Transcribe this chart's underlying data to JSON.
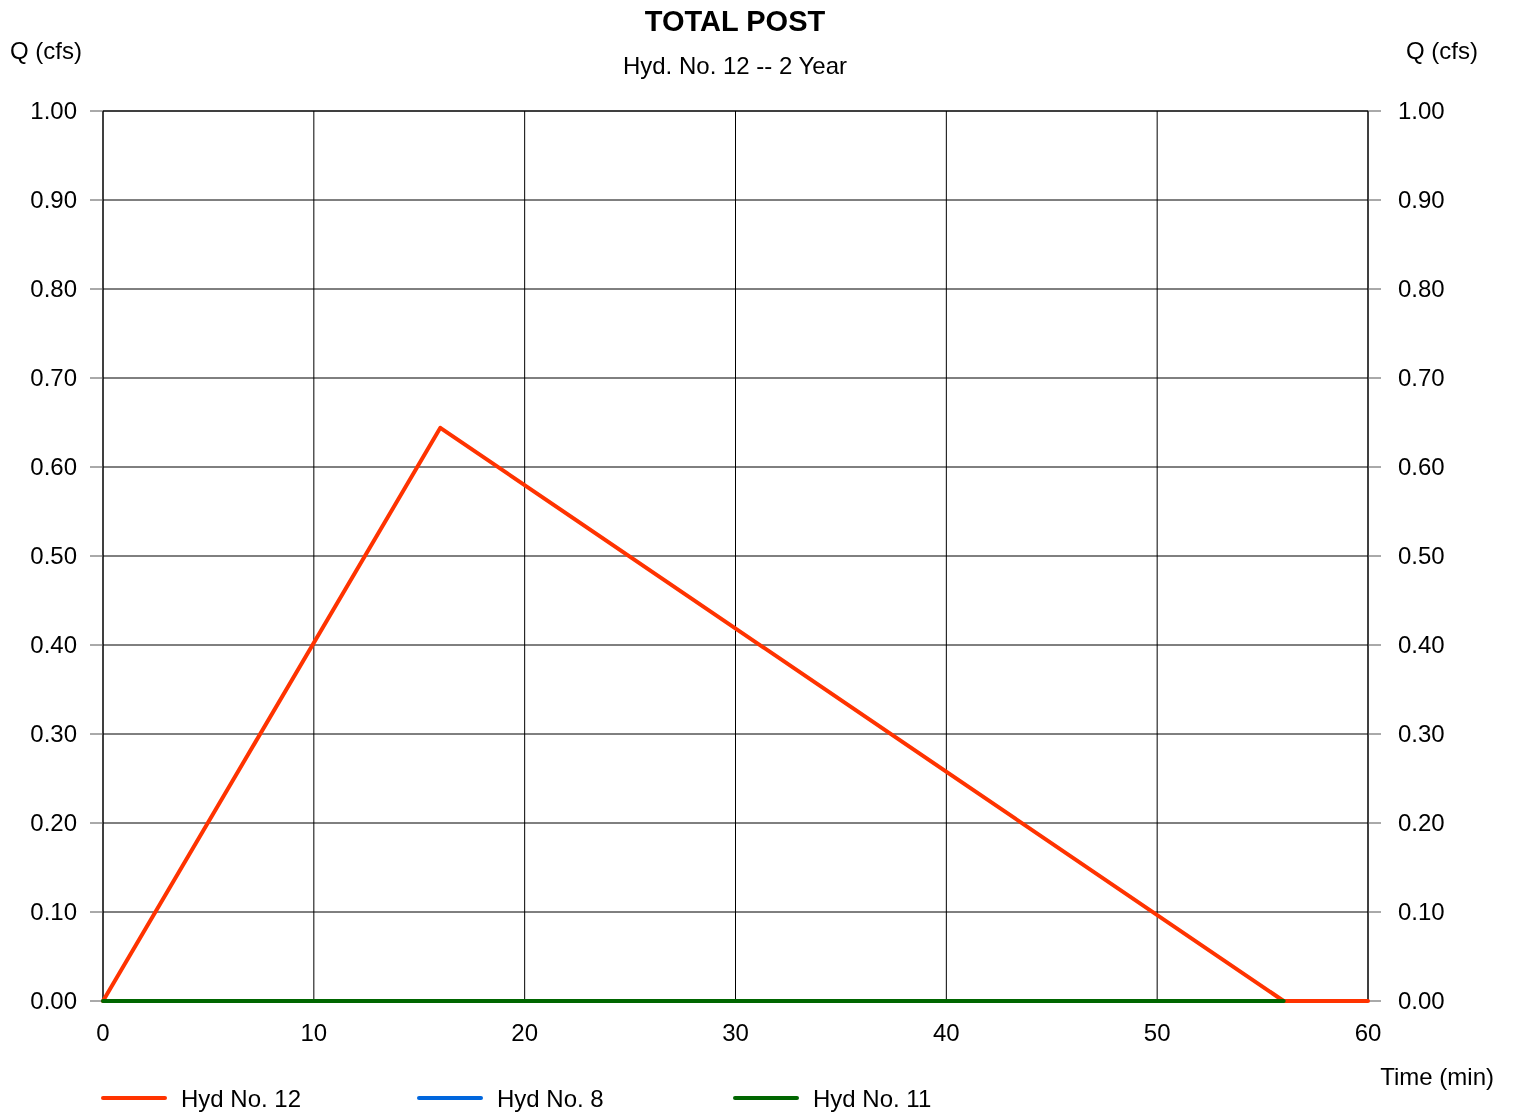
{
  "chart_data": {
    "type": "line",
    "title": "TOTAL POST",
    "subtitle": "Hyd. No. 12 -- 2 Year",
    "xlabel": "Time (min)",
    "ylabel": "Q (cfs)",
    "y2label": "Q (cfs)",
    "xlim": [
      0,
      60
    ],
    "xticks": [
      0,
      10,
      20,
      30,
      40,
      50,
      60
    ],
    "ylim": [
      0,
      1
    ],
    "yticks": [
      {
        "value": 0,
        "label": "0.00"
      },
      {
        "value": 0.1,
        "label": "0.10"
      },
      {
        "value": 0.2,
        "label": "0.20"
      },
      {
        "value": 0.3,
        "label": "0.30"
      },
      {
        "value": 0.4,
        "label": "0.40"
      },
      {
        "value": 0.5,
        "label": "0.50"
      },
      {
        "value": 0.6,
        "label": "0.60"
      },
      {
        "value": 0.7,
        "label": "0.70"
      },
      {
        "value": 0.8,
        "label": "0.80"
      },
      {
        "value": 0.9,
        "label": "0.90"
      },
      {
        "value": 1,
        "label": "1.00"
      }
    ],
    "y2lim": [
      0,
      1
    ],
    "y2ticks": [
      {
        "value": 0,
        "label": "0.00"
      },
      {
        "value": 0.1,
        "label": "0.10"
      },
      {
        "value": 0.2,
        "label": "0.20"
      },
      {
        "value": 0.3,
        "label": "0.30"
      },
      {
        "value": 0.4,
        "label": "0.40"
      },
      {
        "value": 0.5,
        "label": "0.50"
      },
      {
        "value": 0.6,
        "label": "0.60"
      },
      {
        "value": 0.7,
        "label": "0.70"
      },
      {
        "value": 0.8,
        "label": "0.80"
      },
      {
        "value": 0.9,
        "label": "0.90"
      },
      {
        "value": 1,
        "label": "1.00"
      }
    ],
    "grid": true,
    "legend": "bottom",
    "marker": "none",
    "line_style": "solid",
    "series": [
      {
        "name": "Hyd No. 12",
        "color": "#ff3300",
        "x": [
          0,
          16,
          56,
          60
        ],
        "values": [
          0,
          0.644,
          0,
          0
        ]
      },
      {
        "name": "Hyd No. 8",
        "color": "#0066dd"
      },
      {
        "name": "Hyd No. 11",
        "color": "#006600",
        "x": [
          0,
          56
        ],
        "values": [
          0,
          0
        ]
      }
    ]
  }
}
